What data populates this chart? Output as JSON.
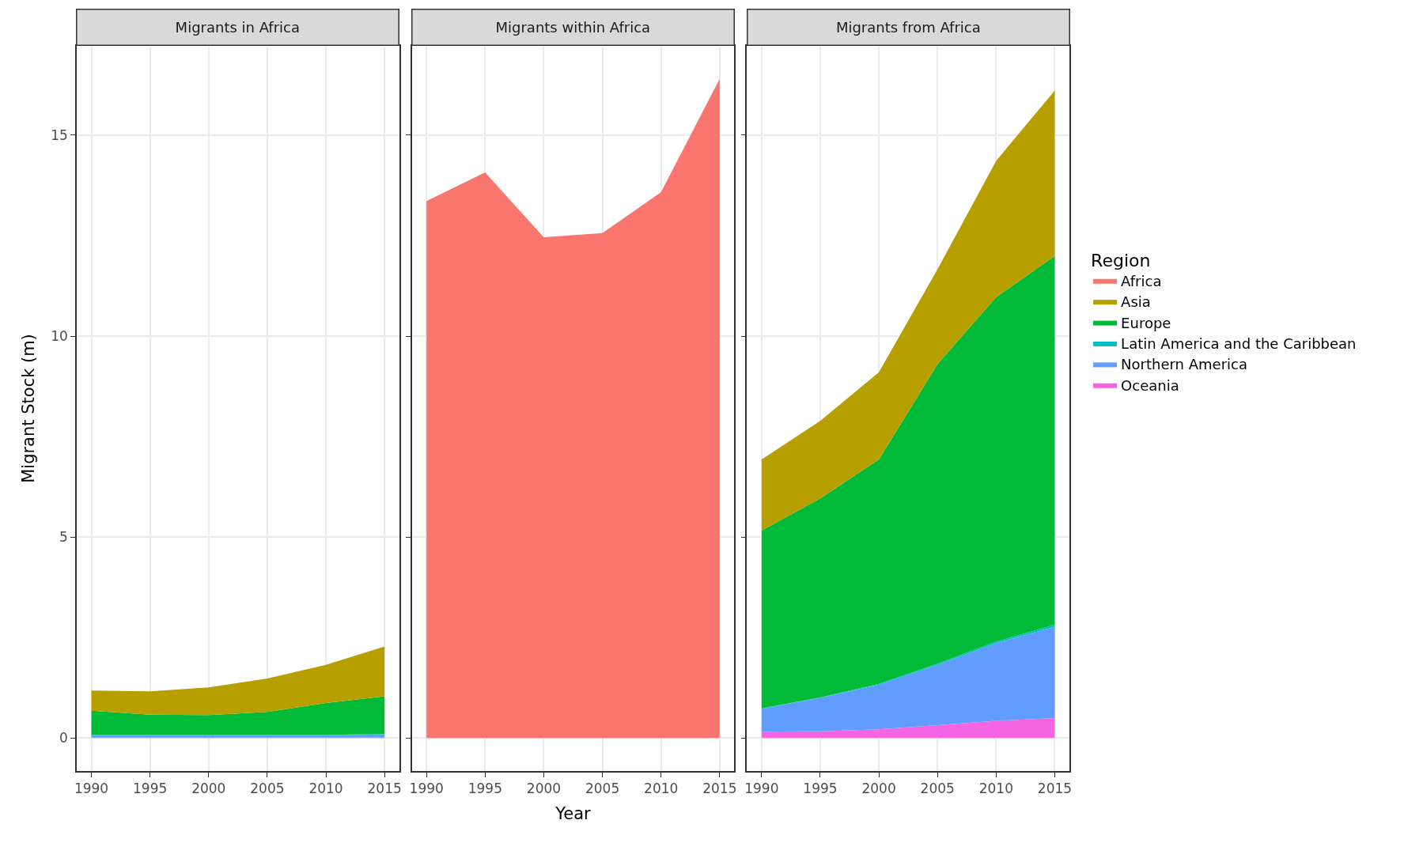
{
  "chart_data": [
    {
      "type": "area",
      "title": "Migrants in Africa",
      "ylabel": "Migrant Stock (m)",
      "stacked": true,
      "grid": true,
      "x": [
        1990,
        1995,
        2000,
        2005,
        2010,
        2015
      ],
      "xlim": [
        1988.75,
        2016.25
      ],
      "xticks": [
        1990,
        1995,
        2000,
        2005,
        2010,
        2015
      ],
      "ylim": [
        -0.82,
        17.22
      ],
      "yticks": [
        0,
        5,
        10,
        15
      ],
      "series": [
        {
          "color": "#f564e3",
          "values": [
            0.01,
            0.01,
            0.01,
            0.01,
            0.01,
            0.01
          ]
        },
        {
          "color": "#619cff",
          "values": [
            0.06,
            0.06,
            0.06,
            0.06,
            0.06,
            0.08
          ]
        },
        {
          "color": "#00bfc4",
          "values": [
            0.01,
            0.01,
            0.01,
            0.01,
            0.01,
            0.01
          ]
        },
        {
          "color": "#00ba38",
          "values": [
            0.6,
            0.5,
            0.49,
            0.57,
            0.79,
            0.94
          ]
        },
        {
          "color": "#b79f00",
          "values": [
            0.5,
            0.58,
            0.69,
            0.83,
            0.95,
            1.24
          ]
        }
      ]
    },
    {
      "type": "area",
      "title": "Migrants within Africa",
      "xlabel": "Year",
      "stacked": true,
      "grid": true,
      "legend": "right",
      "legend_title": "Region",
      "tick_labels": "x",
      "x": [
        1990,
        1995,
        2000,
        2005,
        2010,
        2015
      ],
      "xlim": [
        1988.75,
        2016.25
      ],
      "xticks": [
        1990,
        1995,
        2000,
        2005,
        2010,
        2015
      ],
      "ylim": [
        -0.82,
        17.22
      ],
      "yticks": [
        0,
        5,
        10,
        15
      ],
      "series": [
        {
          "name": "Africa",
          "color": "#f8766d",
          "values": [
            13.36,
            14.07,
            12.46,
            12.56,
            13.58,
            16.4
          ]
        }
      ]
    },
    {
      "type": "area",
      "title": "Migrants from Africa",
      "stacked": true,
      "grid": true,
      "legend": "right",
      "tick_labels": "x",
      "x": [
        1990,
        1995,
        2000,
        2005,
        2010,
        2015
      ],
      "xlim": [
        1988.75,
        2016.25
      ],
      "xticks": [
        1990,
        1995,
        2000,
        2005,
        2010,
        2015
      ],
      "ylim": [
        -0.82,
        17.22
      ],
      "yticks": [
        0,
        5,
        10,
        15
      ],
      "series": [
        {
          "name": "Oceania",
          "color": "#f564e3",
          "values": [
            0.16,
            0.17,
            0.22,
            0.32,
            0.43,
            0.5
          ]
        },
        {
          "name": "Northern America",
          "color": "#619cff",
          "values": [
            0.57,
            0.83,
            1.11,
            1.5,
            1.93,
            2.27
          ]
        },
        {
          "name": "Latin America and the Caribbean",
          "color": "#00bfc4",
          "values": [
            0.01,
            0.01,
            0.02,
            0.03,
            0.04,
            0.05
          ]
        },
        {
          "name": "Europe",
          "color": "#00ba38",
          "values": [
            4.42,
            4.95,
            5.58,
            7.45,
            8.57,
            9.17
          ]
        },
        {
          "name": "Asia",
          "color": "#b79f00",
          "values": [
            1.77,
            1.93,
            2.17,
            2.36,
            3.39,
            4.12
          ]
        }
      ]
    }
  ]
}
